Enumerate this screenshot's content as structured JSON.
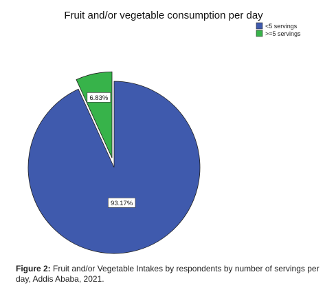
{
  "chart_data": {
    "type": "pie",
    "title": "Fruit and/or vegetable consumption per day",
    "slices": [
      {
        "label": "<5 servings",
        "value": 93.17,
        "value_label": "93.17%",
        "color": "#3f5aad"
      },
      {
        "label": ">=5 servings",
        "value": 6.83,
        "value_label": "6.83%",
        "color": "#37b34a",
        "exploded": true
      }
    ],
    "legend_position": "top-right"
  },
  "caption": {
    "label": "Figure 2:",
    "text": " Fruit and/or Vegetable Intakes by respondents by number of servings per day, Addis Ababa, 2021."
  }
}
